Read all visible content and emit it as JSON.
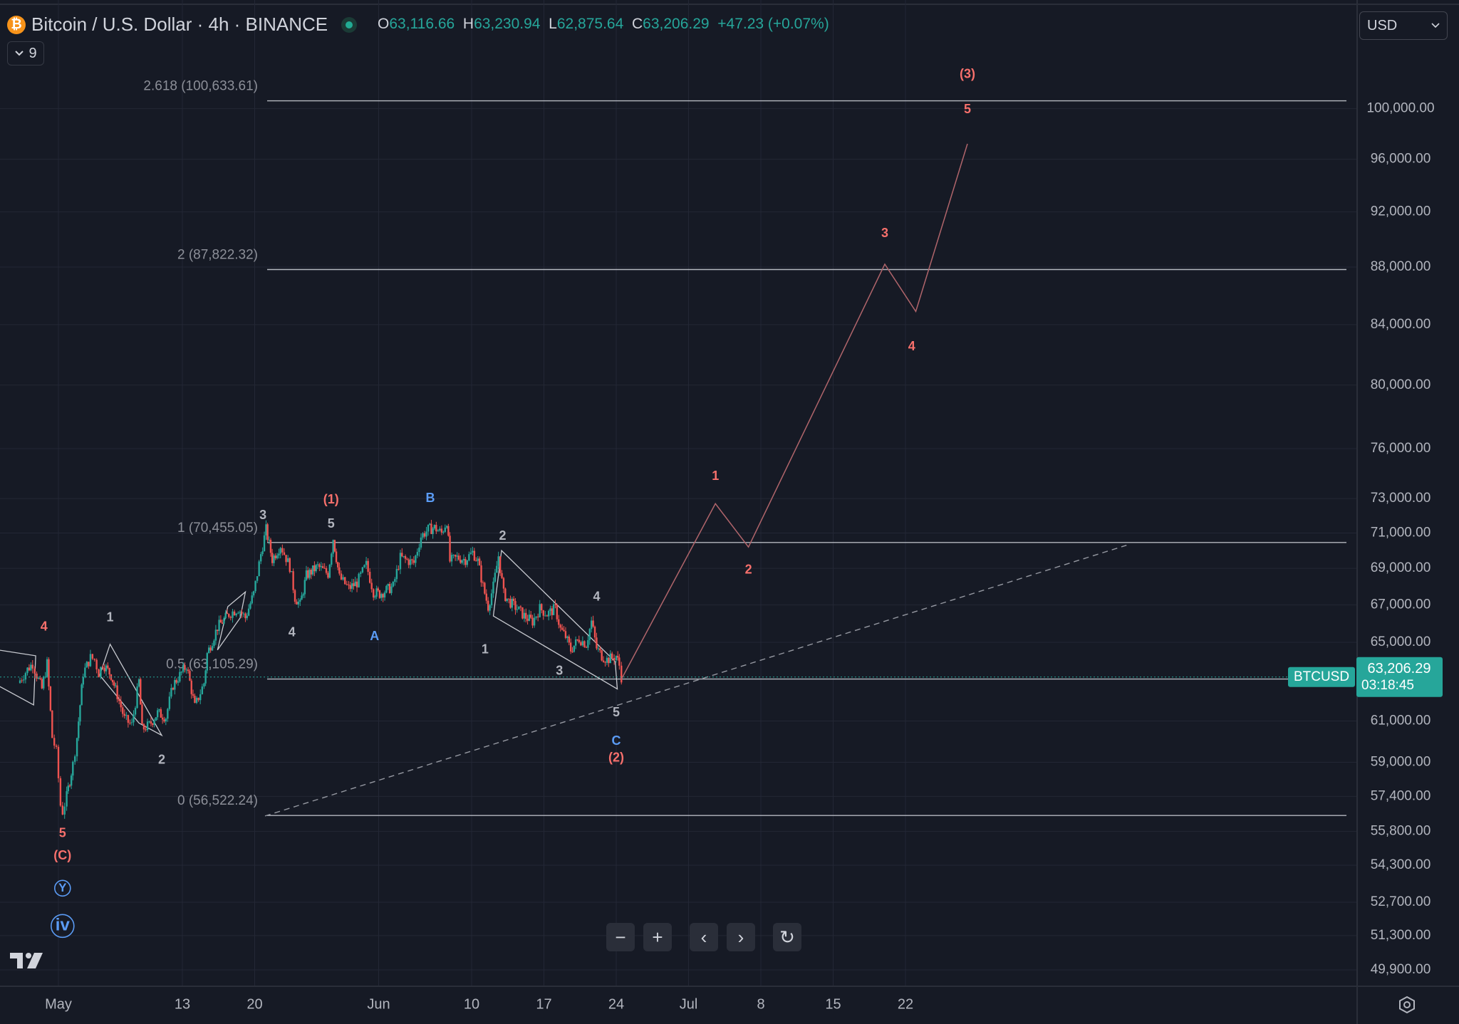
{
  "header": {
    "title": "Bitcoin / U.S. Dollar · 4h · BINANCE",
    "coin_icon": "₿",
    "ohlc": {
      "o_label": "O",
      "o": "63,116.66",
      "h_label": "H",
      "h": "63,230.94",
      "l_label": "L",
      "l": "62,875.64",
      "c_label": "C",
      "c": "63,206.29",
      "change": "+47.23 (+0.07%)"
    },
    "indicator_count": "9",
    "currency": "USD"
  },
  "colors": {
    "background": "#161a25",
    "up": "#26a69a",
    "down": "#ef5350",
    "wave_red": "#f7706c",
    "wave_blue": "#5b9cf6",
    "wave_white": "#b2b5be",
    "fib_line": "#d1d4dc",
    "price_tag": "#26a69a"
  },
  "chart_data": {
    "type": "candlestick",
    "symbol": "BTCUSD",
    "interval": "4h",
    "last_price": "63,206.29",
    "countdown": "03:18:45",
    "y_axis": {
      "scale": "log",
      "range": [
        49500,
        104500
      ],
      "ticks": [
        "100,000.00",
        "96,000.00",
        "92,000.00",
        "88,000.00",
        "84,000.00",
        "80,000.00",
        "76,000.00",
        "73,000.00",
        "71,000.00",
        "69,000.00",
        "67,000.00",
        "65,000.00",
        "61,000.00",
        "59,000.00",
        "57,400.00",
        "55,800.00",
        "54,300.00",
        "52,700.00",
        "51,300.00",
        "49,900.00"
      ]
    },
    "x_axis": {
      "ticks": [
        {
          "label": "May",
          "day": 0
        },
        {
          "label": "13",
          "day": 12
        },
        {
          "label": "20",
          "day": 19
        },
        {
          "label": "Jun",
          "day": 31
        },
        {
          "label": "10",
          "day": 40
        },
        {
          "label": "17",
          "day": 47
        },
        {
          "label": "24",
          "day": 54
        },
        {
          "label": "Jul",
          "day": 61
        },
        {
          "label": "8",
          "day": 68
        },
        {
          "label": "15",
          "day": 75
        },
        {
          "label": "22",
          "day": 82
        }
      ]
    },
    "price_path": [
      [
        -3.9,
        62900
      ],
      [
        -3,
        63600
      ],
      [
        -2.5,
        63900
      ],
      [
        -2.1,
        63300
      ],
      [
        -1.6,
        62600
      ],
      [
        -1.1,
        63900
      ],
      [
        -0.6,
        60200
      ],
      [
        -0.2,
        59500
      ],
      [
        0.2,
        57000
      ],
      [
        0.4,
        56700
      ],
      [
        0.8,
        57400
      ],
      [
        1.4,
        58900
      ],
      [
        1.8,
        60200
      ],
      [
        2.4,
        63400
      ],
      [
        3.1,
        64200
      ],
      [
        3.5,
        64100
      ],
      [
        3.9,
        63400
      ],
      [
        4.3,
        63900
      ],
      [
        5.1,
        63300
      ],
      [
        5.7,
        62300
      ],
      [
        6.4,
        61100
      ],
      [
        7.1,
        60800
      ],
      [
        7.8,
        63000
      ],
      [
        8.1,
        60600
      ],
      [
        8.8,
        60800
      ],
      [
        9.6,
        61400
      ],
      [
        10.4,
        61200
      ],
      [
        11.1,
        62800
      ],
      [
        12.4,
        63800
      ],
      [
        13.2,
        61700
      ],
      [
        14.1,
        62900
      ],
      [
        14.4,
        64400
      ],
      [
        15.4,
        65800
      ],
      [
        16.5,
        66500
      ],
      [
        17.4,
        66800
      ],
      [
        18.1,
        66300
      ],
      [
        18.9,
        67600
      ],
      [
        19.6,
        69800
      ],
      [
        20.1,
        71200
      ],
      [
        20.7,
        69500
      ],
      [
        21.5,
        70300
      ],
      [
        22.4,
        69100
      ],
      [
        22.9,
        67400
      ],
      [
        23.4,
        67000
      ],
      [
        24.0,
        68600
      ],
      [
        25.1,
        69100
      ],
      [
        26.1,
        68700
      ],
      [
        26.6,
        70700
      ],
      [
        27.2,
        68500
      ],
      [
        28.1,
        67900
      ],
      [
        28.9,
        68200
      ],
      [
        29.8,
        69200
      ],
      [
        30.5,
        67700
      ],
      [
        31.1,
        67600
      ],
      [
        32.4,
        68000
      ],
      [
        33.1,
        69600
      ],
      [
        34.4,
        69300
      ],
      [
        35.1,
        70800
      ],
      [
        35.8,
        71200
      ],
      [
        36.4,
        71300
      ],
      [
        37.1,
        71000
      ],
      [
        37.6,
        71700
      ],
      [
        37.9,
        69400
      ],
      [
        38.6,
        69600
      ],
      [
        39.4,
        69500
      ],
      [
        40.1,
        69900
      ],
      [
        40.6,
        69400
      ],
      [
        41.1,
        68000
      ],
      [
        41.6,
        66900
      ],
      [
        42.1,
        68000
      ],
      [
        42.6,
        69700
      ],
      [
        43.1,
        67600
      ],
      [
        43.6,
        67200
      ],
      [
        44.4,
        66800
      ],
      [
        45.1,
        66400
      ],
      [
        45.9,
        66100
      ],
      [
        46.6,
        66800
      ],
      [
        47.3,
        66500
      ],
      [
        48.1,
        66800
      ],
      [
        48.6,
        65700
      ],
      [
        49.1,
        65300
      ],
      [
        49.6,
        64600
      ],
      [
        50.4,
        65200
      ],
      [
        51.1,
        64900
      ],
      [
        51.6,
        66100
      ],
      [
        52.1,
        64700
      ],
      [
        52.6,
        64300
      ],
      [
        53.1,
        64100
      ],
      [
        53.6,
        64200
      ],
      [
        54.0,
        64300
      ],
      [
        54.3,
        63800
      ],
      [
        54.5,
        63206
      ]
    ],
    "fib_levels": [
      {
        "label": "2.618 (100,633.61)",
        "value": 100633.61
      },
      {
        "label": "2 (87,822.32)",
        "value": 87822.32
      },
      {
        "label": "1 (70,455.05)",
        "value": 70455.05
      },
      {
        "label": "0.5 (63,105.29)",
        "value": 63105.29
      },
      {
        "label": "0 (56,522.24)",
        "value": 56522.24
      }
    ],
    "projection_path": [
      [
        54.5,
        63100
      ],
      [
        63.6,
        72700
      ],
      [
        66.8,
        70200
      ],
      [
        80.0,
        88200
      ],
      [
        83.0,
        84900
      ],
      [
        88.0,
        97200
      ]
    ],
    "trendline": {
      "from": [
        20,
        56500
      ],
      "to": [
        103.4,
        70300
      ],
      "style": "dashed"
    },
    "patterns": [
      {
        "points": [
          [
            -7,
            64700
          ],
          [
            -2.2,
            64300
          ],
          [
            -2.4,
            61800
          ],
          [
            -7,
            63100
          ]
        ]
      },
      {
        "points": [
          [
            5.0,
            64900
          ],
          [
            10.0,
            60300
          ],
          [
            7.8,
            60900
          ],
          [
            4.0,
            63300
          ]
        ]
      },
      {
        "points": [
          [
            16.4,
            66900
          ],
          [
            18.1,
            67700
          ],
          [
            17.6,
            66300
          ],
          [
            15.4,
            64600
          ]
        ]
      },
      {
        "points": [
          [
            42.9,
            70000
          ],
          [
            53.9,
            64000
          ],
          [
            54.1,
            62600
          ],
          [
            42.1,
            66400
          ]
        ]
      }
    ],
    "wave_labels": [
      {
        "text": "4",
        "day": -1.4,
        "price": 65800,
        "color": "red"
      },
      {
        "text": "5",
        "day": 0.4,
        "price": 55700,
        "color": "red"
      },
      {
        "text": "(C)",
        "day": 0.4,
        "price": 54700,
        "color": "red"
      },
      {
        "text": "1",
        "day": 5.0,
        "price": 66300,
        "color": "white"
      },
      {
        "text": "2",
        "day": 10.0,
        "price": 59100,
        "color": "white"
      },
      {
        "text": "3",
        "day": 19.8,
        "price": 72000,
        "color": "white"
      },
      {
        "text": "4",
        "day": 22.6,
        "price": 65500,
        "color": "white"
      },
      {
        "text": "5",
        "day": 26.4,
        "price": 71500,
        "color": "white"
      },
      {
        "text": "(1)",
        "day": 26.4,
        "price": 72900,
        "color": "red"
      },
      {
        "text": "A",
        "day": 30.6,
        "price": 65300,
        "color": "blue"
      },
      {
        "text": "B",
        "day": 36.0,
        "price": 73000,
        "color": "blue"
      },
      {
        "text": "2",
        "day": 43.0,
        "price": 70800,
        "color": "white"
      },
      {
        "text": "1",
        "day": 41.3,
        "price": 64600,
        "color": "white"
      },
      {
        "text": "3",
        "day": 48.5,
        "price": 63500,
        "color": "white"
      },
      {
        "text": "4",
        "day": 52.1,
        "price": 67400,
        "color": "white"
      },
      {
        "text": "5",
        "day": 54.0,
        "price": 61400,
        "color": "white"
      },
      {
        "text": "C",
        "day": 54.0,
        "price": 60000,
        "color": "blue"
      },
      {
        "text": "(2)",
        "day": 54.0,
        "price": 59200,
        "color": "red"
      },
      {
        "text": "1",
        "day": 63.6,
        "price": 74300,
        "color": "red"
      },
      {
        "text": "2",
        "day": 66.8,
        "price": 68900,
        "color": "red"
      },
      {
        "text": "3",
        "day": 80.0,
        "price": 90400,
        "color": "red"
      },
      {
        "text": "4",
        "day": 82.6,
        "price": 82500,
        "color": "red"
      },
      {
        "text": "5",
        "day": 88.0,
        "price": 99900,
        "color": "red"
      },
      {
        "text": "(3)",
        "day": 88.0,
        "price": 102800,
        "color": "red"
      },
      {
        "text": "Y",
        "day": 0.4,
        "price": 53300,
        "color": "blue",
        "circled": true
      },
      {
        "text": "iv",
        "day": 0.4,
        "price": 51700,
        "color": "blue",
        "circled": true
      }
    ]
  },
  "toolbar": {
    "zoom_out": "−",
    "zoom_in": "+",
    "scroll_left": "‹",
    "scroll_right": "›",
    "reset": "↻"
  },
  "icons": {
    "logo": "TradingView logo",
    "settings": "gear-icon",
    "chevron": "chevron-down-icon"
  }
}
